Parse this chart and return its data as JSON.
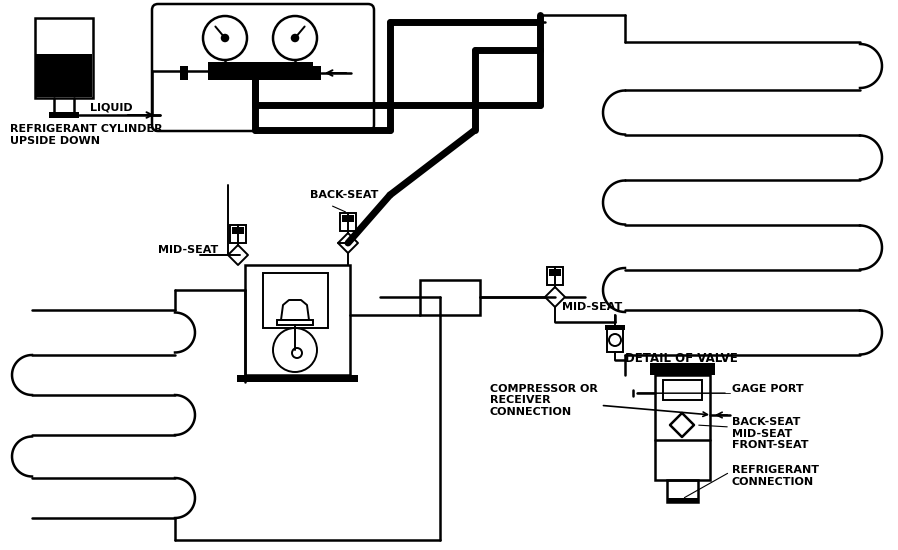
{
  "bg_color": "#ffffff",
  "labels": {
    "liquid": "LIQUID",
    "refrig_cylinder": "REFRIGERANT CYLINDER\nUPSIDE DOWN",
    "back_seat1": "BACK-SEAT",
    "mid_seat1": "MID-SEAT",
    "mid_seat2": "MID-SEAT",
    "detail_valve": "DETAIL OF VALVE",
    "gage_port": "GAGE PORT",
    "back_seat2": "BACK-SEAT\nMID-SEAT\nFRONT-SEAT",
    "compressor": "COMPRESSOR OR\nRECEIVER\nCONNECTION",
    "refrig_connection": "REFRIGERANT\nCONNECTION"
  }
}
